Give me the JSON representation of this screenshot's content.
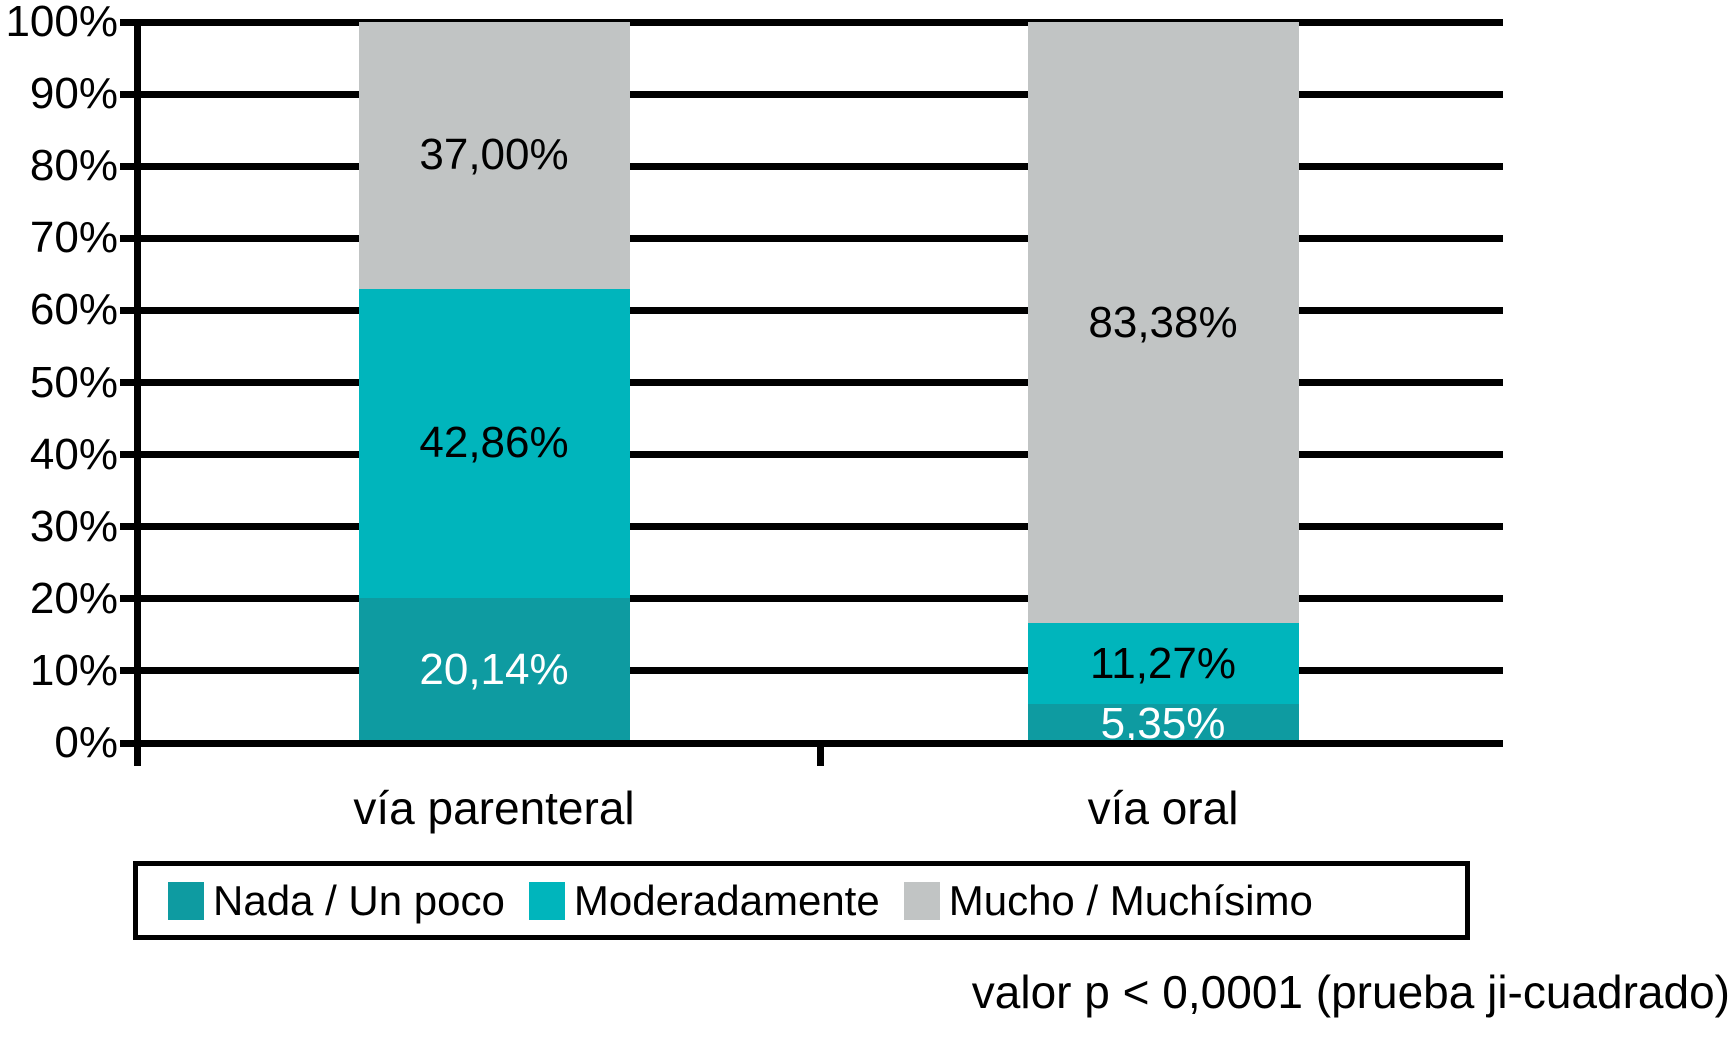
{
  "chart_data": {
    "type": "bar",
    "subtype": "stacked-100-percent",
    "categories": [
      "vía parenteral",
      "vía oral"
    ],
    "series": [
      {
        "name": "Nada / Un poco",
        "color": "#0E9BA1",
        "label_color": "#FFFFFF",
        "values": [
          20.14,
          5.35
        ],
        "value_labels": [
          "20,14%",
          "5,35%"
        ]
      },
      {
        "name": "Moderadamente",
        "color": "#00B5BC",
        "label_color": "#000000",
        "values": [
          42.86,
          11.27
        ],
        "value_labels": [
          "42,86%",
          "11,27%"
        ]
      },
      {
        "name": "Mucho / Muchísimo",
        "color": "#C1C4C4",
        "label_color": "#000000",
        "values": [
          37.0,
          83.38
        ],
        "value_labels": [
          "37,00%",
          "83,38%"
        ]
      }
    ],
    "y_axis": {
      "min": 0,
      "max": 100,
      "ticks": [
        "0%",
        "10%",
        "20%",
        "30%",
        "40%",
        "50%",
        "60%",
        "70%",
        "80%",
        "90%",
        "100%"
      ]
    },
    "grid": true,
    "legend_position": "bottom",
    "annotation": "valor p < 0,0001 (prueba ji-cuadrado)"
  },
  "colors": {
    "axis": "#000000",
    "background": "#FFFFFF"
  }
}
